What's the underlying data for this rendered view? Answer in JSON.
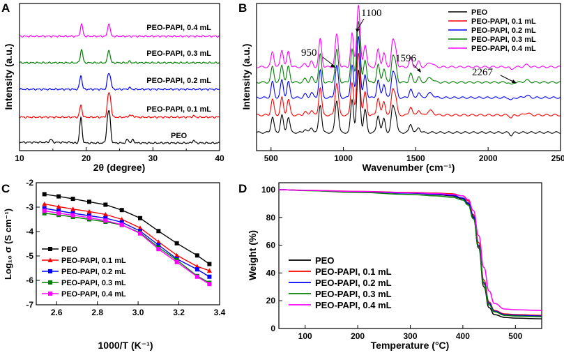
{
  "colors": {
    "PEO": "#000000",
    "PEO-PAPI, 0.1 mL": "#ff0000",
    "PEO-PAPI, 0.2 mL": "#0000ff",
    "PEO-PAPI, 0.3 mL": "#008000",
    "PEO-PAPI, 0.4 mL": "#ff00ff"
  },
  "chart_data": [
    {
      "panel": "A",
      "type": "line",
      "title": "",
      "xlabel": "2θ (degree)",
      "ylabel": "Intensity (a.u.)",
      "xlim": [
        10,
        40
      ],
      "xticks": [
        "10",
        "20",
        "30",
        "40"
      ],
      "series": [
        {
          "name": "PEO",
          "peaks": [
            [
              14.7,
              0.25
            ],
            [
              19.2,
              2.0
            ],
            [
              23.2,
              1.6
            ],
            [
              23.5,
              2.0
            ],
            [
              26.2,
              0.3
            ],
            [
              27.0,
              0.25
            ],
            [
              36.1,
              0.2
            ]
          ]
        },
        {
          "name": "PEO-PAPI, 0.1 mL",
          "peaks": [
            [
              19.2,
              0.95
            ],
            [
              23.3,
              1.45
            ],
            [
              23.6,
              1.3
            ],
            [
              26.5,
              0.15
            ],
            [
              27.0,
              0.12
            ],
            [
              36.1,
              0.1
            ]
          ]
        },
        {
          "name": "PEO-PAPI, 0.2 mL",
          "peaks": [
            [
              19.2,
              1.1
            ],
            [
              23.3,
              1.0
            ],
            [
              23.6,
              0.8
            ],
            [
              26.5,
              0.12
            ]
          ]
        },
        {
          "name": "PEO-PAPI, 0.3 mL",
          "peaks": [
            [
              19.3,
              1.05
            ],
            [
              23.4,
              1.05
            ],
            [
              26.5,
              0.1
            ]
          ]
        },
        {
          "name": "PEO-PAPI, 0.4 mL",
          "peaks": [
            [
              19.3,
              0.95
            ],
            [
              23.4,
              1.05
            ]
          ]
        }
      ]
    },
    {
      "panel": "B",
      "type": "line",
      "title": "",
      "xlabel": "Wavenumber (cm⁻¹)",
      "ylabel": "Intensity (a.u.)",
      "xlim": [
        400,
        2500
      ],
      "xticks": [
        "500",
        "1000",
        "1500",
        "2000",
        "2500"
      ],
      "series": [
        {
          "name": "PEO"
        },
        {
          "name": "PEO-PAPI, 0.1 mL"
        },
        {
          "name": "PEO-PAPI, 0.2 mL"
        },
        {
          "name": "PEO-PAPI, 0.3 mL"
        },
        {
          "name": "PEO-PAPI, 0.4 mL"
        }
      ],
      "annotations": [
        "950",
        "1100",
        "1596",
        "2267"
      ]
    },
    {
      "panel": "C",
      "type": "line",
      "title": "",
      "xlabel": "1000/T (K⁻¹)",
      "ylabel": "Log₁₀ σ (S cm⁻¹)",
      "xlim": [
        2.5,
        3.4
      ],
      "ylim": [
        -7,
        -2
      ],
      "xticks": [
        "2.6",
        "2.8",
        "3.0",
        "3.2",
        "3.4"
      ],
      "yticks": [
        "-2",
        "-3",
        "-4",
        "-5",
        "-6",
        "-7"
      ],
      "x": [
        2.54,
        2.61,
        2.68,
        2.76,
        2.84,
        2.92,
        3.01,
        3.1,
        3.19,
        3.29,
        3.35
      ],
      "series": [
        {
          "name": "PEO",
          "values": [
            -2.47,
            -2.56,
            -2.66,
            -2.78,
            -2.9,
            -3.12,
            -3.45,
            -3.98,
            -4.48,
            -4.98,
            -5.33
          ]
        },
        {
          "name": "PEO-PAPI, 0.1 mL",
          "values": [
            -2.87,
            -2.98,
            -3.08,
            -3.18,
            -3.3,
            -3.5,
            -3.85,
            -4.42,
            -4.97,
            -5.43,
            -5.6
          ]
        },
        {
          "name": "PEO-PAPI, 0.2 mL",
          "values": [
            -3.05,
            -3.15,
            -3.25,
            -3.35,
            -3.45,
            -3.62,
            -3.98,
            -4.55,
            -5.12,
            -5.55,
            -5.85
          ]
        },
        {
          "name": "PEO-PAPI, 0.3 mL",
          "values": [
            -3.25,
            -3.32,
            -3.4,
            -3.5,
            -3.6,
            -3.73,
            -4.05,
            -4.65,
            -5.17,
            -5.82,
            -6.1
          ]
        },
        {
          "name": "PEO-PAPI, 0.4 mL",
          "values": [
            -3.15,
            -3.25,
            -3.33,
            -3.43,
            -3.55,
            -3.72,
            -4.08,
            -4.72,
            -5.25,
            -5.85,
            -6.15
          ]
        }
      ]
    },
    {
      "panel": "D",
      "type": "line",
      "title": "",
      "xlabel": "Temperature (°C)",
      "ylabel": "Weight (%)",
      "xlim": [
        50,
        550
      ],
      "ylim": [
        0,
        105
      ],
      "xticks": [
        "100",
        "200",
        "300",
        "400",
        "500"
      ],
      "yticks": [
        "0",
        "20",
        "40",
        "60",
        "80",
        "100"
      ],
      "x": [
        50,
        100,
        200,
        300,
        350,
        380,
        400,
        410,
        420,
        430,
        440,
        450,
        460,
        480,
        500,
        550
      ],
      "series": [
        {
          "name": "PEO",
          "values": [
            100,
            99.5,
            98.5,
            97.5,
            96.5,
            95.5,
            93.5,
            90,
            80,
            58,
            30,
            15,
            10,
            8,
            7.5,
            7
          ]
        },
        {
          "name": "PEO-PAPI, 0.1 mL",
          "values": [
            100,
            99.6,
            98.8,
            98,
            97.5,
            97,
            95.5,
            92,
            82,
            62,
            35,
            19,
            13,
            10.5,
            10,
            9.5
          ]
        },
        {
          "name": "PEO-PAPI, 0.2 mL",
          "values": [
            100,
            99.5,
            98.6,
            97.5,
            96.8,
            96,
            94,
            90.5,
            81,
            60,
            33,
            18,
            12.5,
            10,
            9.5,
            9
          ]
        },
        {
          "name": "PEO-PAPI, 0.3 mL",
          "values": [
            100,
            99.3,
            98,
            96.5,
            95.5,
            94.5,
            92.5,
            89,
            79,
            59,
            32,
            17,
            12,
            9.5,
            9,
            8.5
          ]
        },
        {
          "name": "PEO-PAPI, 0.4 mL",
          "values": [
            100,
            99.5,
            98.7,
            97.8,
            97.2,
            96.5,
            95.5,
            93,
            85,
            67,
            44,
            27,
            18,
            14,
            13.5,
            13
          ]
        }
      ]
    }
  ]
}
